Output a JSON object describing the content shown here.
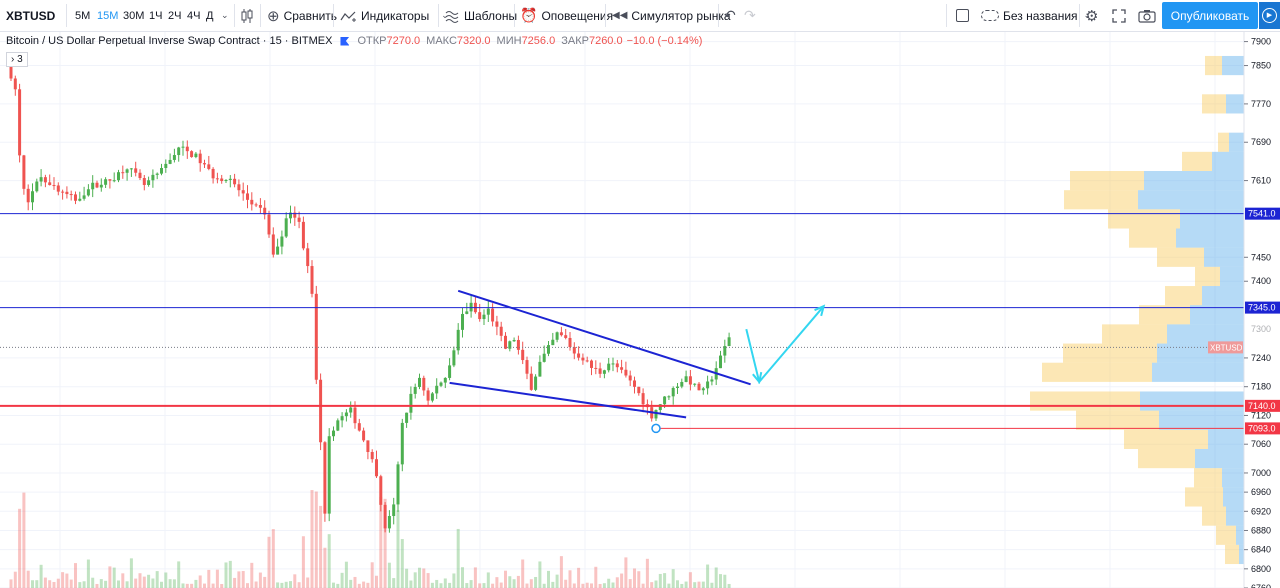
{
  "toolbar": {
    "symbol": "XBTUSD",
    "intervals": [
      {
        "label": "5М",
        "active": false
      },
      {
        "label": "15М",
        "active": true
      },
      {
        "label": "30М",
        "active": false
      },
      {
        "label": "1Ч",
        "active": false
      },
      {
        "label": "2Ч",
        "active": false
      },
      {
        "label": "4Ч",
        "active": false
      },
      {
        "label": "Д",
        "active": false
      }
    ],
    "compare_label": "Сравнить",
    "indicators_label": "Индикаторы",
    "templates_label": "Шаблоны",
    "alerts_label": "Оповещения",
    "replay_label": "Симулятор рынка",
    "layout_name": "Без названия",
    "publish_label": "Опубликовать"
  },
  "legend": {
    "title": "Bitcoin / US Dollar Perpetual Inverse Swap Contract · 15 · BITMEX",
    "open_label": "ОТКР",
    "open": "7270.0",
    "high_label": "МАКС",
    "high": "7320.0",
    "low_label": "МИН",
    "low": "7256.0",
    "close_label": "ЗАКР",
    "close": "7260.0",
    "change": "−10.0 (−0.14%)",
    "collapsed_count": "3"
  },
  "colors": {
    "up": "#26a69a",
    "up_bright": "#4caf50",
    "down": "#ef5350",
    "trend": "#1c24d3",
    "arrow": "#33d6f0",
    "accent": "#2196f3",
    "vp_up": "#5aaeea",
    "vp_down": "#f9c95a"
  },
  "chart_data": {
    "type": "candlestick",
    "symbol": "XBTUSD",
    "interval": "15",
    "price_axis": {
      "range": [
        6760,
        7920
      ],
      "ticks": [
        7900,
        7850,
        7770,
        7690,
        7610,
        7450,
        7400,
        7240,
        7180,
        7120,
        7060,
        7000,
        6960,
        6920,
        6880,
        6840,
        6800,
        6760
      ],
      "ticks_faded": [
        7541,
        7345,
        7300,
        7140,
        7093
      ]
    },
    "price_labels": [
      {
        "label": "7541.0",
        "value": 7541,
        "color": "#1c24d3"
      },
      {
        "label": "7345.0",
        "value": 7345,
        "color": "#1c24d3"
      },
      {
        "label": "XBTUSD",
        "value": 7262,
        "color": "#ef9a9a"
      },
      {
        "label": "7140.0",
        "value": 7140,
        "color": "#f23645"
      },
      {
        "label": "7093.0",
        "value": 7093,
        "color": "#f23645"
      }
    ],
    "horizontal_lines": [
      {
        "value": 7541,
        "color": "#1c24d3"
      },
      {
        "value": 7345,
        "color": "#1c24d3"
      },
      {
        "value": 7140,
        "color": "#f23645"
      }
    ],
    "close_line": 7262,
    "ray": {
      "value": 7093,
      "start_bar": 150
    },
    "bars_count": 168,
    "last_close": 7260,
    "trendlines": [
      {
        "from": {
          "bar": 104,
          "price": 7380
        },
        "to": {
          "bar": 172,
          "price": 7185
        }
      },
      {
        "from": {
          "bar": 102,
          "price": 7188
        },
        "to": {
          "bar": 157,
          "price": 7116
        }
      }
    ],
    "projection": [
      {
        "bar": 171,
        "price": 7300
      },
      {
        "bar": 174,
        "price": 7190
      },
      {
        "bar": 189,
        "price": 7348
      }
    ],
    "volume_profile": [
      {
        "price": 7850,
        "up": 17,
        "down": 22
      },
      {
        "price": 7770,
        "up": 24,
        "down": 18
      },
      {
        "price": 7690,
        "up": 11,
        "down": 15
      },
      {
        "price": 7650,
        "up": 30,
        "down": 32
      },
      {
        "price": 7610,
        "up": 74,
        "down": 100
      },
      {
        "price": 7570,
        "up": 74,
        "down": 106
      },
      {
        "price": 7530,
        "up": 72,
        "down": 64
      },
      {
        "price": 7490,
        "up": 47,
        "down": 68
      },
      {
        "price": 7450,
        "up": 47,
        "down": 40
      },
      {
        "price": 7410,
        "up": 25,
        "down": 24
      },
      {
        "price": 7370,
        "up": 37,
        "down": 42
      },
      {
        "price": 7330,
        "up": 51,
        "down": 54
      },
      {
        "price": 7290,
        "up": 65,
        "down": 77
      },
      {
        "price": 7250,
        "up": 94,
        "down": 87
      },
      {
        "price": 7210,
        "up": 110,
        "down": 92
      },
      {
        "price": 7150,
        "up": 110,
        "down": 104
      },
      {
        "price": 7110,
        "up": 83,
        "down": 85
      },
      {
        "price": 7070,
        "up": 84,
        "down": 36
      },
      {
        "price": 7030,
        "up": 57,
        "down": 49
      },
      {
        "price": 6990,
        "up": 28,
        "down": 22
      },
      {
        "price": 6950,
        "up": 38,
        "down": 21
      },
      {
        "price": 6910,
        "up": 24,
        "down": 18
      },
      {
        "price": 6870,
        "up": 20,
        "down": 8
      },
      {
        "price": 6830,
        "up": 14,
        "down": 5
      }
    ]
  }
}
